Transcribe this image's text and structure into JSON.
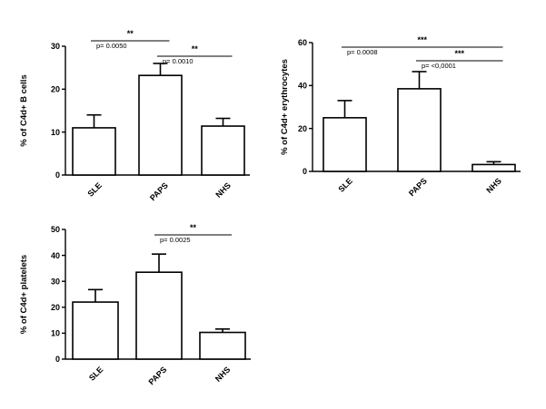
{
  "chart_data": [
    {
      "type": "bar",
      "ylabel": "% of C4d+ B cells",
      "ylim": [
        0,
        30
      ],
      "yticks": [
        0,
        10,
        20,
        30
      ],
      "categories": [
        "SLE",
        "PAPS",
        "NHS"
      ],
      "values": [
        11,
        23.2,
        11.4
      ],
      "errors": [
        3,
        2.8,
        1.8
      ],
      "comparisons": [
        {
          "from": 0,
          "to": 1,
          "stars": "**",
          "p": "p= 0.0050"
        },
        {
          "from": 1,
          "to": 2,
          "stars": "**",
          "p": "p= 0.0010"
        }
      ]
    },
    {
      "type": "bar",
      "ylabel": "% of C4d+ erythrocytes",
      "ylim": [
        0,
        60
      ],
      "yticks": [
        0,
        20,
        40,
        60
      ],
      "categories": [
        "SLE",
        "PAPS",
        "NHS"
      ],
      "values": [
        25,
        38.5,
        3.2
      ],
      "errors": [
        8,
        8,
        1.3
      ],
      "comparisons": [
        {
          "from": 0,
          "to": 2,
          "stars": "***",
          "p": "p= 0.0008"
        },
        {
          "from": 1,
          "to": 2,
          "stars": "***",
          "p": "p= <0,0001"
        }
      ]
    },
    {
      "type": "bar",
      "ylabel": "% of C4d+ platelets",
      "ylim": [
        0,
        50
      ],
      "yticks": [
        0,
        10,
        20,
        30,
        40,
        50
      ],
      "categories": [
        "SLE",
        "PAPS",
        "NHS"
      ],
      "values": [
        22,
        33.5,
        10.3
      ],
      "errors": [
        4.8,
        7,
        1.3
      ],
      "comparisons": [
        {
          "from": 1,
          "to": 2,
          "stars": "**",
          "p": "p= 0.0025"
        }
      ]
    }
  ]
}
